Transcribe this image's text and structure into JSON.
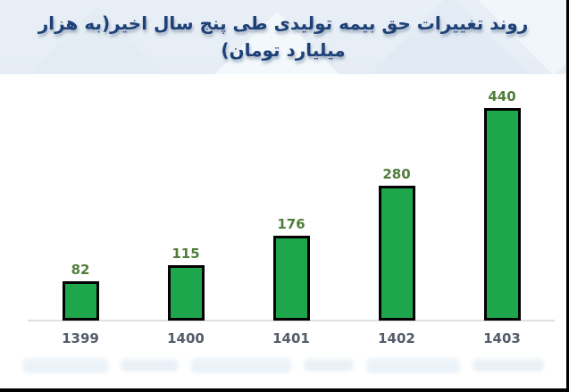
{
  "chart_data": {
    "type": "bar",
    "title": "روند تغییرات حق بیمه تولیدی طی پنج سال اخیر(به هزار میلیارد تومان)",
    "categories": [
      "1399",
      "1400",
      "1401",
      "1402",
      "1403"
    ],
    "values": [
      82,
      115,
      176,
      280,
      440
    ],
    "xlabel": "",
    "ylabel": "",
    "ylim": [
      0,
      460
    ],
    "grid": false,
    "legend": "none",
    "data_labels": true
  },
  "colors": {
    "bar_fill": "#1ea64c",
    "bar_border": "#000000",
    "value_label": "#507d3c",
    "tick_label": "#545c6b",
    "title": "#1d4077",
    "header_bg": "#e9eff6",
    "axis_line": "#dcdfe3",
    "frame_border": "#000000"
  }
}
